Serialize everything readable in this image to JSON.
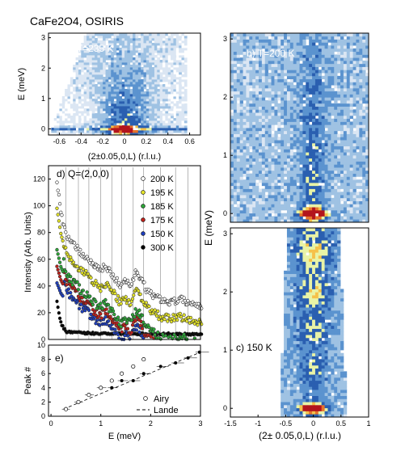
{
  "chart_data": [
    {
      "panel": "a",
      "type": "heatmap",
      "title": "CaFe2O4, OSIRIS",
      "annotation": "a) T=235 K",
      "xlabel": "(2±0.05,0,L) (r.l.u.)",
      "ylabel": "E (meV)",
      "xlim": [
        -0.7,
        0.7
      ],
      "ylim": [
        0,
        3
      ],
      "xticks": [
        "-0.6",
        "-0.4",
        "-0.2",
        "0",
        "0.2",
        "0.4",
        "0.6"
      ],
      "yticks": [
        "0",
        "1",
        "2",
        "3"
      ],
      "colormap": [
        "#ffffff",
        "#dbe6f3",
        "#9fc2e3",
        "#5b93cf",
        "#2a5fb0",
        "#e9f3a6",
        "#f6c14a",
        "#e6722b",
        "#b3151d"
      ]
    },
    {
      "panel": "b",
      "type": "heatmap",
      "annotation": "b) T=200 K",
      "ylabel": "E (meV)",
      "xlim": [
        -1.5,
        1
      ],
      "ylim": [
        0,
        3
      ],
      "yticks": [
        "0",
        "1",
        "2",
        "3"
      ]
    },
    {
      "panel": "c",
      "type": "heatmap",
      "annotation": "c) 150 K",
      "xlabel": "(2± 0.05,0,L) (r.l.u.)",
      "ylabel": "E (meV)",
      "xlim": [
        -1.5,
        1
      ],
      "ylim": [
        0,
        3
      ],
      "xticks": [
        "-1.5",
        "-1",
        "-0.5",
        "0",
        "0.5",
        "1"
      ],
      "yticks": [
        "0",
        "1",
        "2",
        "3"
      ]
    },
    {
      "panel": "d",
      "type": "line",
      "annotation": "d) Q=(2,0,0)",
      "ylabel": "Intensity (Arb. Units)",
      "xlim": [
        -0.05,
        3
      ],
      "ylim": [
        0,
        130
      ],
      "yticks": [
        "0",
        "20",
        "40",
        "60",
        "80",
        "100",
        "120"
      ],
      "vlines": [
        0.3,
        0.55,
        0.76,
        1.0,
        1.22,
        1.42,
        1.65,
        1.86,
        2.2,
        2.5,
        2.75
      ],
      "series": [
        {
          "name": "200 K",
          "color": "#ffffff",
          "offset": 58,
          "amp": 1.0,
          "x": [
            0.12,
            0.2,
            0.3,
            0.4,
            0.5,
            0.6,
            0.7,
            0.8,
            0.9,
            1.0,
            1.1,
            1.2,
            1.3,
            1.4,
            1.5,
            1.6,
            1.7,
            1.8,
            1.9,
            2.0,
            2.2,
            2.4,
            2.6,
            2.8,
            3.0
          ],
          "y": [
            120,
            95,
            78,
            72,
            70,
            64,
            62,
            58,
            54,
            52,
            55,
            50,
            45,
            40,
            44,
            40,
            50,
            46,
            38,
            34,
            30,
            28,
            30,
            27,
            25
          ]
        },
        {
          "name": "195 K",
          "color": "#e6e62b",
          "offset": 45
        },
        {
          "name": "185 K",
          "color": "#2fa83a",
          "offset": 30
        },
        {
          "name": "175 K",
          "color": "#c0231d",
          "offset": 24
        },
        {
          "name": "150 K",
          "color": "#1f3fbf",
          "offset": 18
        },
        {
          "name": "300 K",
          "color": "#000000",
          "x": [
            0.12,
            0.2,
            0.3,
            0.5,
            1.0,
            1.5,
            2.0,
            2.5,
            3.0
          ],
          "y": [
            28,
            12,
            6,
            5,
            4.5,
            4.5,
            4.2,
            4.0,
            4.0
          ]
        }
      ]
    },
    {
      "panel": "e",
      "type": "scatter",
      "annotation": "e)",
      "xlabel": "E (meV)",
      "ylabel": "Peak #",
      "xlim": [
        -0.05,
        3
      ],
      "ylim": [
        0,
        10
      ],
      "xticks": [
        "0",
        "1",
        "2",
        "3"
      ],
      "yticks": [
        "0",
        "2",
        "4",
        "6",
        "8",
        "10"
      ],
      "series": [
        {
          "name": "Airy",
          "marker": "open-circle",
          "x": [
            0.3,
            0.55,
            0.76,
            1.0,
            1.22,
            1.42,
            1.65,
            1.86
          ],
          "y": [
            1,
            2,
            3,
            4,
            5,
            6,
            7,
            8
          ]
        },
        {
          "name": "",
          "marker": "filled-circle",
          "x": [
            0.3,
            0.55,
            0.76,
            1.0,
            1.22,
            1.42,
            1.65,
            1.86,
            2.2,
            2.5,
            2.75,
            2.98
          ],
          "y": [
            1,
            2,
            3,
            4,
            4,
            5,
            5,
            6,
            7,
            7.5,
            8.2,
            9
          ]
        },
        {
          "name": "Lande",
          "style": "dashed",
          "x": [
            0.25,
            3.0
          ],
          "y": [
            1,
            9
          ]
        }
      ]
    }
  ]
}
